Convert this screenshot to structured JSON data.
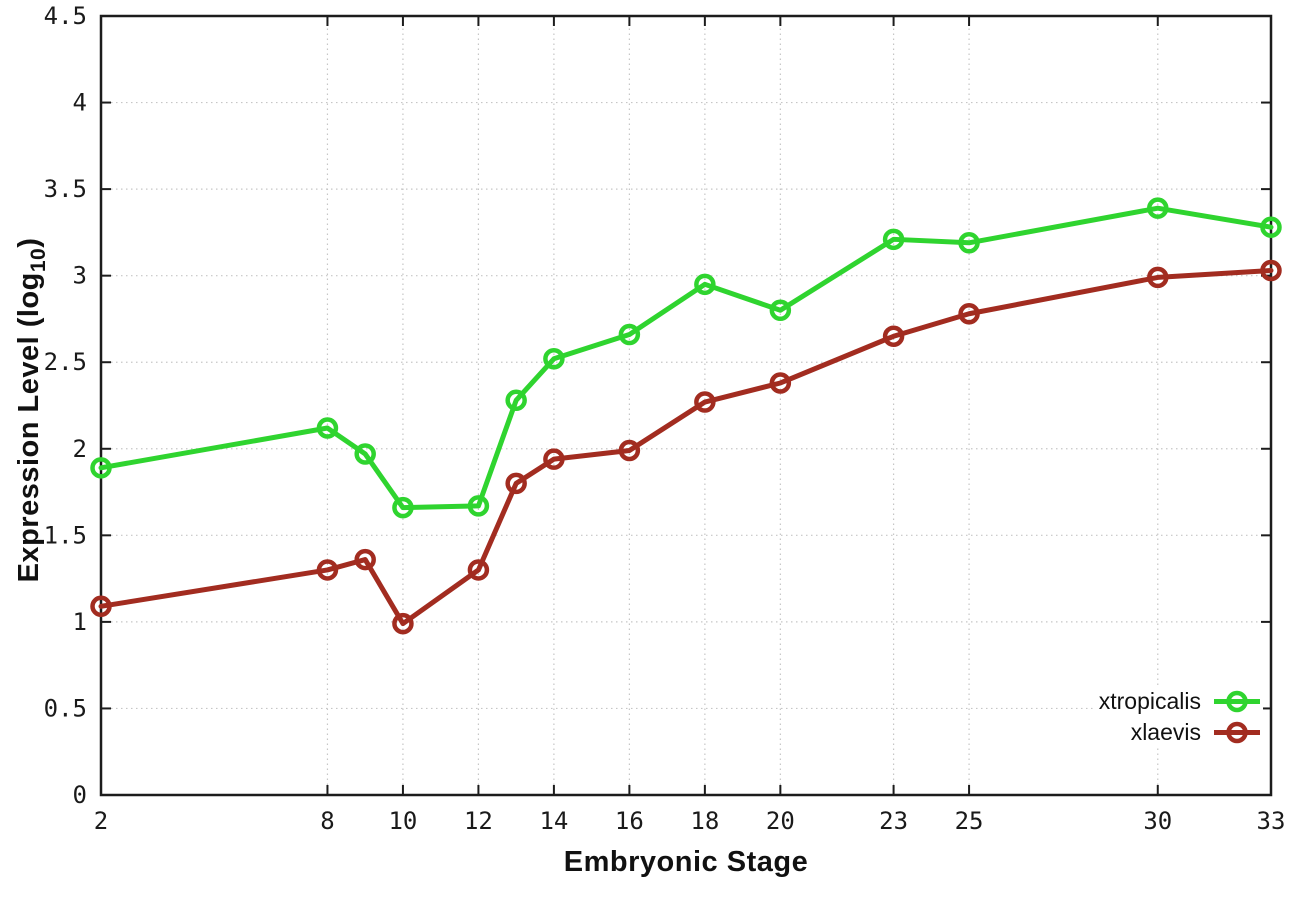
{
  "chart_data": {
    "type": "line",
    "title": "",
    "xlabel": "Embryonic Stage",
    "ylabel": {
      "pre": "Expression Level (log",
      "sub": "10",
      "post": ")"
    },
    "x": [
      2,
      8,
      9,
      10,
      12,
      13,
      14,
      16,
      18,
      20,
      23,
      25,
      30,
      33
    ],
    "series": [
      {
        "name": "xtropicalis",
        "color": "#2fd42f",
        "values": [
          1.89,
          2.12,
          1.97,
          1.66,
          1.67,
          2.28,
          2.52,
          2.66,
          2.95,
          2.8,
          3.21,
          3.19,
          3.39,
          3.28
        ]
      },
      {
        "name": "xlaevis",
        "color": "#a22c20",
        "values": [
          1.09,
          1.3,
          1.36,
          0.99,
          1.3,
          1.8,
          1.94,
          1.99,
          2.27,
          2.38,
          2.65,
          2.78,
          2.99,
          3.03
        ]
      }
    ],
    "xlim": [
      2,
      33
    ],
    "ylim": [
      0,
      4.5
    ],
    "xticks": [
      {
        "v": 2,
        "label": "2"
      },
      {
        "v": 8,
        "label": "8"
      },
      {
        "v": 10,
        "label": "10"
      },
      {
        "v": 12,
        "label": "12"
      },
      {
        "v": 14,
        "label": "14"
      },
      {
        "v": 16,
        "label": "16"
      },
      {
        "v": 18,
        "label": "18"
      },
      {
        "v": 20,
        "label": "20"
      },
      {
        "v": 23,
        "label": "23"
      },
      {
        "v": 25,
        "label": "25"
      },
      {
        "v": 30,
        "label": "30"
      },
      {
        "v": 33,
        "label": "33"
      }
    ],
    "yticks": [
      {
        "v": 0,
        "label": "0"
      },
      {
        "v": 0.5,
        "label": "0.5"
      },
      {
        "v": 1,
        "label": "1"
      },
      {
        "v": 1.5,
        "label": "1.5"
      },
      {
        "v": 2,
        "label": "2"
      },
      {
        "v": 2.5,
        "label": "2.5"
      },
      {
        "v": 3,
        "label": "3"
      },
      {
        "v": 3.5,
        "label": "3.5"
      },
      {
        "v": 4,
        "label": "4"
      },
      {
        "v": 4.5,
        "label": "4.5"
      }
    ],
    "grid": true,
    "legend_position": "inside-bottom-right",
    "colors": {
      "axis": "#1c1c1c",
      "grid": "#c6c6c6",
      "tick_text": "#1a1a1a"
    }
  }
}
